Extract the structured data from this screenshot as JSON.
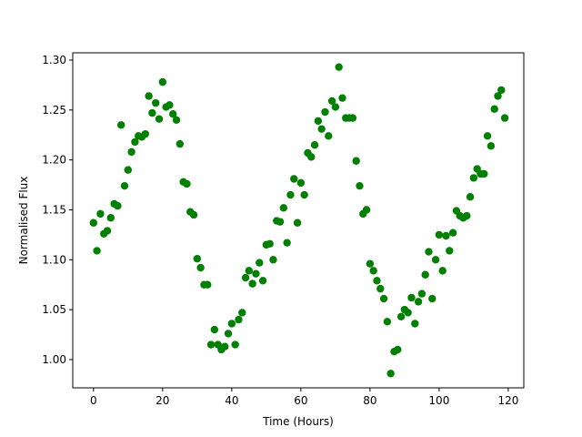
{
  "chart_data": {
    "type": "scatter",
    "xlabel": "Time (Hours)",
    "ylabel": "Normalised Flux",
    "color": "#008000",
    "xlim": [
      -6,
      124.5
    ],
    "ylim": [
      0.9717,
      1.3073
    ],
    "xticks": [
      0,
      20,
      40,
      60,
      80,
      100,
      120
    ],
    "yticks": [
      {
        "value": 1,
        "label": "1.00"
      },
      1.05,
      {
        "value": 1.1,
        "label": "1.10"
      },
      1.15,
      {
        "value": 1.2,
        "label": "1.20"
      },
      1.25,
      {
        "value": 1.3,
        "label": "1.30"
      }
    ],
    "x": [
      0,
      1,
      2,
      3,
      4,
      5,
      6,
      7,
      8,
      9,
      10,
      11,
      12,
      13,
      14,
      15,
      16,
      17,
      18,
      19,
      20,
      21,
      22,
      23,
      24,
      25,
      26,
      27,
      28,
      29,
      30,
      31,
      32,
      33,
      34,
      35,
      36,
      37,
      38,
      39,
      40,
      41,
      42,
      43,
      44,
      45,
      46,
      47,
      48,
      49,
      50,
      51,
      52,
      53,
      54,
      55,
      56,
      57,
      58,
      59,
      60,
      61,
      62,
      63,
      64,
      65,
      66,
      67,
      68,
      69,
      70,
      71,
      72,
      73,
      74,
      75,
      76,
      77,
      78,
      79,
      80,
      81,
      82,
      83,
      84,
      85,
      86,
      87,
      88,
      89,
      90,
      91,
      92,
      93,
      94,
      95,
      96,
      97,
      98,
      99,
      100,
      101,
      102,
      103,
      104,
      105,
      106,
      107,
      108,
      109,
      110,
      111,
      112,
      113,
      114,
      115,
      116,
      117,
      118,
      119
    ],
    "values": [
      1.137,
      1.109,
      1.146,
      1.126,
      1.129,
      1.142,
      1.156,
      1.154,
      1.235,
      1.174,
      1.19,
      1.208,
      1.218,
      1.224,
      1.223,
      1.226,
      1.264,
      1.247,
      1.257,
      1.241,
      1.278,
      1.253,
      1.255,
      1.246,
      1.24,
      1.216,
      1.178,
      1.176,
      1.148,
      1.145,
      1.101,
      1.092,
      1.075,
      1.075,
      1.015,
      1.03,
      1.015,
      1.01,
      1.013,
      1.026,
      1.036,
      1.015,
      1.04,
      1.047,
      1.082,
      1.089,
      1.076,
      1.086,
      1.097,
      1.079,
      1.115,
      1.116,
      1.1,
      1.139,
      1.138,
      1.152,
      1.117,
      1.165,
      1.181,
      1.137,
      1.177,
      1.165,
      1.207,
      1.203,
      1.215,
      1.239,
      1.231,
      1.248,
      1.224,
      1.259,
      1.253,
      1.293,
      1.262,
      1.242,
      1.242,
      1.242,
      1.199,
      1.174,
      1.146,
      1.15,
      1.096,
      1.089,
      1.079,
      1.071,
      1.061,
      1.038,
      0.986,
      1.008,
      1.01,
      1.043,
      1.05,
      1.047,
      1.062,
      1.036,
      1.058,
      1.066,
      1.085,
      1.108,
      1.061,
      1.1,
      1.125,
      1.089,
      1.124,
      1.109,
      1.127,
      1.149,
      1.144,
      1.142,
      1.144,
      1.163,
      1.182,
      1.191,
      1.186,
      1.186,
      1.224,
      1.214,
      1.251,
      1.264,
      1.27,
      1.242
    ]
  }
}
